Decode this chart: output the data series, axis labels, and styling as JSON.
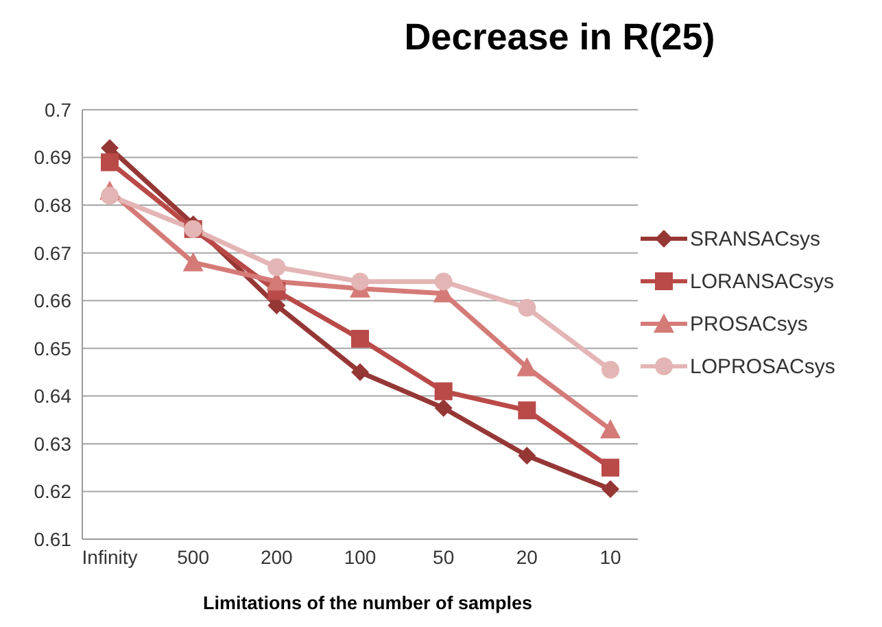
{
  "chart_data": {
    "type": "line",
    "title": "Decrease in R(25)",
    "xlabel": "Limitations of the number of samples",
    "categories": [
      "Infinity",
      "500",
      "200",
      "100",
      "50",
      "20",
      "10"
    ],
    "ylim": [
      0.61,
      0.7
    ],
    "yticks": [
      0.61,
      0.62,
      0.63,
      0.64,
      0.65,
      0.66,
      0.67,
      0.68,
      0.69,
      0.7
    ],
    "grid": "y",
    "legend": "right",
    "line_style": "solid",
    "series": [
      {
        "name": "SRANSACsys",
        "color": "#953735",
        "marker": "diamond",
        "values": [
          0.692,
          0.676,
          0.659,
          0.645,
          0.6375,
          0.6275,
          0.6205
        ]
      },
      {
        "name": "LORANSACsys",
        "color": "#b94a48",
        "marker": "square",
        "values": [
          0.689,
          0.675,
          0.662,
          0.652,
          0.641,
          0.637,
          0.625
        ]
      },
      {
        "name": "PROSACsys",
        "color": "#d47b78",
        "marker": "triangle",
        "values": [
          0.683,
          0.668,
          0.664,
          0.6625,
          0.6615,
          0.646,
          0.633
        ]
      },
      {
        "name": "LOPROSACsys",
        "color": "#e3b5b4",
        "marker": "circle",
        "values": [
          0.682,
          0.675,
          0.667,
          0.664,
          0.664,
          0.6585,
          0.6455
        ]
      }
    ]
  }
}
